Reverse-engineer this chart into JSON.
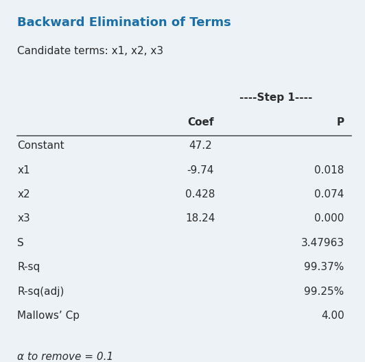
{
  "title": "Backward Elimination of Terms",
  "subtitle": "Candidate terms: x1, x2, x3",
  "step_label": "----Step 1----",
  "col_headers": [
    "Coef",
    "P"
  ],
  "row_labels": [
    "Constant",
    "x1",
    "x2",
    "x3",
    "S",
    "R-sq",
    "R-sq(adj)",
    "Mallows’ Cp"
  ],
  "coef_values": [
    "47.2",
    "-9.74",
    "0.428",
    "18.24",
    "",
    "",
    "",
    ""
  ],
  "p_values": [
    "",
    "0.018",
    "0.074",
    "0.000",
    "3.47963",
    "99.37%",
    "99.25%",
    "4.00"
  ],
  "footer": "α to remove = 0.1",
  "bg_color": "#edf2f7",
  "title_color": "#1a6fa8",
  "text_color": "#2b2b2b",
  "table_line_color": "#555555",
  "title_fontsize": 13,
  "subtitle_fontsize": 11,
  "header_fontsize": 11,
  "body_fontsize": 11,
  "footer_fontsize": 11
}
